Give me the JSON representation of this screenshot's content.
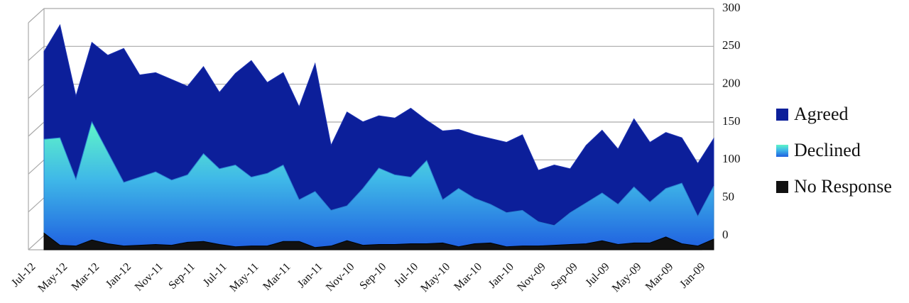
{
  "chart_data": {
    "type": "area",
    "categories": [
      "Jul-12",
      null,
      "May-12",
      null,
      "Mar-12",
      null,
      "Jan-12",
      null,
      "Nov-11",
      null,
      "Sep-11",
      null,
      "Jul-11",
      null,
      "May-11",
      null,
      "Mar-11",
      null,
      "Jan-11",
      null,
      "Nov-10",
      null,
      "Sep-10",
      null,
      "Jul-10",
      null,
      "May-10",
      null,
      "Mar-10",
      null,
      "Jan-10",
      null,
      "Nov-09",
      null,
      "Sep-09",
      null,
      "Jul-09",
      null,
      "May-09",
      null,
      "Mar-09",
      null,
      "Jan-09"
    ],
    "series": [
      {
        "name": "Agreed",
        "color": "#0c1f9a",
        "values": [
          262,
          297,
          203,
          274,
          257,
          266,
          231,
          234,
          225,
          216,
          242,
          208,
          233,
          250,
          221,
          234,
          189,
          246,
          138,
          182,
          169,
          177,
          174,
          187,
          171,
          157,
          159,
          152,
          147,
          142,
          152,
          105,
          112,
          107,
          138,
          158,
          133,
          173,
          142,
          155,
          148,
          114,
          147
        ]
      },
      {
        "name": "Declined",
        "color": "#3fb8e8",
        "values": [
          146,
          148,
          93,
          169,
          129,
          89,
          96,
          103,
          92,
          99,
          127,
          107,
          112,
          96,
          101,
          112,
          66,
          77,
          52,
          58,
          81,
          108,
          99,
          96,
          118,
          66,
          81,
          68,
          60,
          49,
          52,
          37,
          32,
          49,
          62,
          75,
          60,
          83,
          63,
          81,
          88,
          44,
          84
        ]
      },
      {
        "name": "No Response",
        "color": "#111111",
        "values": [
          22,
          6,
          5,
          13,
          8,
          5,
          6,
          7,
          6,
          10,
          11,
          7,
          4,
          5,
          5,
          11,
          11,
          3,
          5,
          12,
          6,
          7,
          7,
          8,
          8,
          9,
          4,
          8,
          9,
          4,
          5,
          5,
          6,
          7,
          8,
          12,
          7,
          9,
          9,
          17,
          8,
          5,
          14
        ]
      }
    ],
    "ylim": [
      0,
      300
    ],
    "yticks": [
      0,
      50,
      100,
      150,
      200,
      250,
      300
    ],
    "grid": true,
    "legend": "right"
  }
}
